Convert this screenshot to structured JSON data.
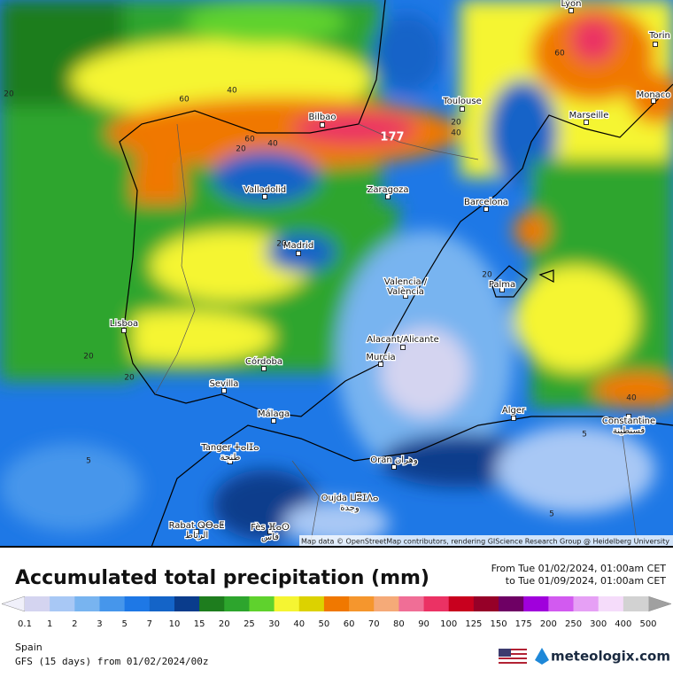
{
  "map": {
    "cities": [
      {
        "lines": [
          "Lyon"
        ]
      },
      {
        "lines": [
          "Torin"
        ]
      },
      {
        "lines": [
          "Monaco"
        ]
      },
      {
        "lines": [
          "Marseille"
        ]
      },
      {
        "lines": [
          "Toulouse"
        ]
      },
      {
        "lines": [
          "Bilbao"
        ]
      },
      {
        "lines": [
          "Valladolid"
        ]
      },
      {
        "lines": [
          "Zaragoza"
        ]
      },
      {
        "lines": [
          "Barcelona"
        ]
      },
      {
        "lines": [
          "Madrid"
        ]
      },
      {
        "lines": [
          "Valencia /",
          "València"
        ]
      },
      {
        "lines": [
          "Palma"
        ]
      },
      {
        "lines": [
          "Lisboa"
        ]
      },
      {
        "lines": [
          "Alacant/Alicante"
        ]
      },
      {
        "lines": [
          "Murcia"
        ]
      },
      {
        "lines": [
          "Córdoba"
        ]
      },
      {
        "lines": [
          "Sevilla"
        ]
      },
      {
        "lines": [
          "Málaga"
        ]
      },
      {
        "lines": [
          "Alger"
        ]
      },
      {
        "lines": [
          "Constantine",
          "قسنطينة"
        ]
      },
      {
        "lines": [
          "Tanger ⵜⴰⵏⵊⴰ",
          "طنجة"
        ]
      },
      {
        "lines": [
          "Oran وهران"
        ]
      },
      {
        "lines": [
          "Oujda ⵡⵓⵊⴷⴰ",
          "وجدة"
        ]
      },
      {
        "lines": [
          "Rabat ⵕⴱⴰⵟ",
          "الرباط"
        ]
      },
      {
        "lines": [
          "Fès ⴼⴰⵙ",
          "فاس"
        ]
      }
    ],
    "contour_labels": [
      "20",
      "40",
      "60",
      "60",
      "20",
      "40",
      "60",
      "40",
      "20",
      "20",
      "20",
      "20",
      "20",
      "5",
      "40",
      "5",
      "5"
    ],
    "max_label": "177",
    "attribution": "Map data © OpenStreetMap contributors, rendering GIScience Research Group @ Heidelberg University"
  },
  "legend": {
    "title": "Accumulated total precipitation (mm)",
    "period_from": "From Tue 01/02/2024, 01:00am CET",
    "period_to": "to Tue 01/09/2024, 01:00am CET",
    "ticks": [
      0.1,
      1,
      2,
      3,
      5,
      7,
      10,
      15,
      20,
      25,
      30,
      40,
      50,
      60,
      70,
      80,
      90,
      100,
      125,
      150,
      175,
      200,
      250,
      300,
      400,
      500
    ],
    "colors": [
      "#d4d4f0",
      "#a8c8f5",
      "#78b4f0",
      "#4696eb",
      "#1e78e6",
      "#1464c8",
      "#0a3c8c",
      "#1e7d1e",
      "#2da52d",
      "#5fd22d",
      "#f5f532",
      "#dcd200",
      "#f07800",
      "#f5962d",
      "#f5aa78",
      "#f06e96",
      "#eb3264",
      "#c8001e",
      "#960028",
      "#6e0064",
      "#a000dc",
      "#d25af0",
      "#e6a0f5",
      "#f5dcfa",
      "#d2d2d2"
    ],
    "under_color": "#f0f0fa",
    "over_color": "#a0a0a0"
  },
  "footer": {
    "region": "Spain",
    "model": "GFS (15 days) from 01/02/2024/00z",
    "brand": "meteologix.com"
  }
}
